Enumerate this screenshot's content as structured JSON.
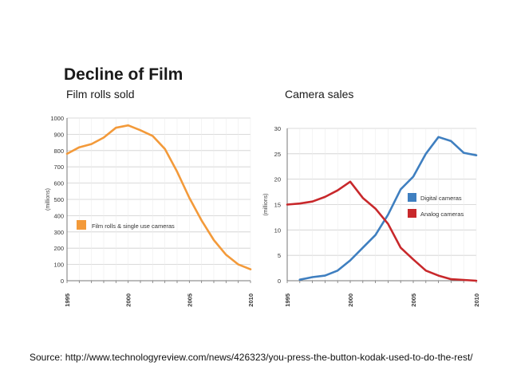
{
  "main_title": "Decline of Film",
  "source": "Source: http://www.technologyreview.com/news/426323/you-press-the-button-kodak-used-to-do-the-rest/",
  "colors": {
    "film": "#f39a3a",
    "digital": "#3f7fc0",
    "analog": "#c8282b",
    "grid": "#cfcfcf",
    "axis": "#777777"
  },
  "chart_data": [
    {
      "type": "line",
      "title": "Film rolls sold",
      "ylabel": "(millions)",
      "xlabel": "",
      "ylim": [
        0,
        1000
      ],
      "xlim": [
        1995,
        2010
      ],
      "y_ticks": [
        0,
        100,
        200,
        300,
        400,
        500,
        600,
        700,
        800,
        900,
        1000
      ],
      "x_ticks": [
        "1995",
        "2000",
        "2005",
        "2010"
      ],
      "grid": true,
      "legend_position": "middle-left",
      "series": [
        {
          "name": "Film rolls & single use cameras",
          "color": "#f39a3a",
          "x": [
            1995,
            1996,
            1997,
            1998,
            1999,
            2000,
            2001,
            2002,
            2003,
            2004,
            2005,
            2006,
            2007,
            2008,
            2009,
            2010
          ],
          "values": [
            780,
            820,
            840,
            880,
            940,
            955,
            925,
            890,
            810,
            670,
            510,
            370,
            250,
            160,
            100,
            70
          ]
        }
      ]
    },
    {
      "type": "line",
      "title": "Camera sales",
      "ylabel": "(millions)",
      "xlabel": "",
      "ylim": [
        0,
        30
      ],
      "xlim": [
        1995,
        2010
      ],
      "y_ticks": [
        0,
        5,
        10,
        15,
        20,
        25,
        30
      ],
      "x_ticks": [
        "1995",
        "2000",
        "2005",
        "2010"
      ],
      "grid": true,
      "legend_position": "right",
      "series": [
        {
          "name": "Digital cameras",
          "color": "#3f7fc0",
          "x": [
            1996,
            1997,
            1998,
            1999,
            2000,
            2001,
            2002,
            2003,
            2004,
            2005,
            2006,
            2007,
            2008,
            2009,
            2010
          ],
          "values": [
            0.2,
            0.7,
            1.0,
            2.0,
            4.0,
            6.5,
            9.0,
            13.0,
            18.0,
            20.5,
            25.0,
            28.3,
            27.5,
            25.2,
            24.7
          ]
        },
        {
          "name": "Analog cameras",
          "color": "#c8282b",
          "x": [
            1995,
            1996,
            1997,
            1998,
            1999,
            2000,
            2001,
            2002,
            2003,
            2004,
            2005,
            2006,
            2007,
            2008,
            2009,
            2010
          ],
          "values": [
            15.0,
            15.2,
            15.6,
            16.5,
            17.8,
            19.5,
            16.3,
            14.2,
            11.2,
            6.5,
            4.2,
            2.0,
            1.0,
            0.3,
            0.15,
            0.0
          ]
        }
      ]
    }
  ]
}
